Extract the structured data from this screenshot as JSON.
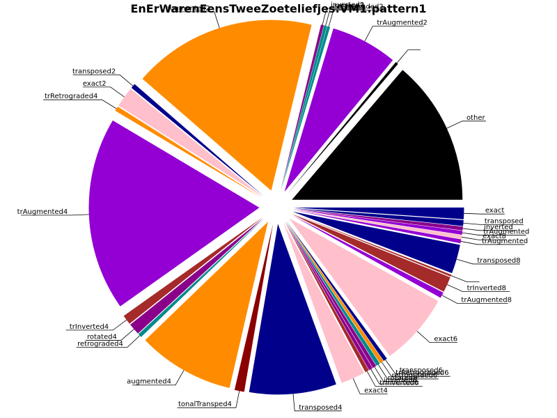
{
  "chart_data": {
    "type": "pie",
    "title": "EnErWarenEensTweeZoeteliefjes:VM1:pattern1",
    "start_angle_deg": 0,
    "direction": "counterclockwise",
    "exploded": true,
    "slices": [
      {
        "label": "other",
        "value": 15.0,
        "color": "#000000"
      },
      {
        "label": "",
        "value": 0.3,
        "color": "#000000"
      },
      {
        "label": "trAugmented2",
        "value": 6.9,
        "color": "#9400d3"
      },
      {
        "label": "retrograded2",
        "value": 0.3,
        "color": "#008b8b"
      },
      {
        "label": "rotated2",
        "value": 0.3,
        "color": "#008b8b"
      },
      {
        "label": "inverted2",
        "value": 0.3,
        "color": "#8b008b"
      },
      {
        "label": "augmented2",
        "value": 19.0,
        "color": "#ff8c00"
      },
      {
        "label": "transposed2",
        "value": 0.5,
        "color": "#00008b"
      },
      {
        "label": "exact2",
        "value": 2.1,
        "color": "#ffc0cb"
      },
      {
        "label": "trRetrograded4",
        "value": 0.5,
        "color": "#ff8c00"
      },
      {
        "label": "trAugmented4",
        "value": 20.0,
        "color": "#9400d3"
      },
      {
        "label": "trInverted4",
        "value": 1.0,
        "color": "#a52a2a"
      },
      {
        "label": "rotated4",
        "value": 1.2,
        "color": "#8b008b"
      },
      {
        "label": "retrograded4",
        "value": 0.4,
        "color": "#008b8b"
      },
      {
        "label": "augmented4",
        "value": 10.0,
        "color": "#ff8c00"
      },
      {
        "label": "tonalTransped4",
        "value": 1.0,
        "color": "#8b0000"
      },
      {
        "label": "transposed4",
        "value": 9.0,
        "color": "#00008b"
      },
      {
        "label": "exact4",
        "value": 2.5,
        "color": "#ffc0cb"
      },
      {
        "label": "trInverted6",
        "value": 0.4,
        "color": "#a52a2a"
      },
      {
        "label": "inverted6",
        "value": 0.4,
        "color": "#8b008b"
      },
      {
        "label": "rotated6",
        "value": 0.4,
        "color": "#8b008b"
      },
      {
        "label": "retrograded6",
        "value": 0.4,
        "color": "#008b8b"
      },
      {
        "label": "trRetrograded6",
        "value": 0.4,
        "color": "#ff8c00"
      },
      {
        "label": "transposed6",
        "value": 0.4,
        "color": "#00008b"
      },
      {
        "label": "exact6",
        "value": 7.5,
        "color": "#ffc0cb"
      },
      {
        "label": "trAugmented8",
        "value": 0.6,
        "color": "#9400d3"
      },
      {
        "label": "trInverted8",
        "value": 1.6,
        "color": "#a52a2a"
      },
      {
        "label": "",
        "value": 0.2,
        "color": "#a52a2a"
      },
      {
        "label": "transposed8",
        "value": 3.0,
        "color": "#00008b"
      },
      {
        "label": "trAugmented",
        "value": 0.4,
        "color": "#9400d3"
      },
      {
        "label": "exact8",
        "value": 0.4,
        "color": "#ffc0cb"
      },
      {
        "label": "trAugmented",
        "value": 0.4,
        "color": "#9400d3"
      },
      {
        "label": "inverted",
        "value": 0.4,
        "color": "#8b008b"
      },
      {
        "label": "transposed",
        "value": 0.6,
        "color": "#00008b"
      },
      {
        "label": "exact",
        "value": 1.2,
        "color": "#00008b"
      }
    ]
  }
}
